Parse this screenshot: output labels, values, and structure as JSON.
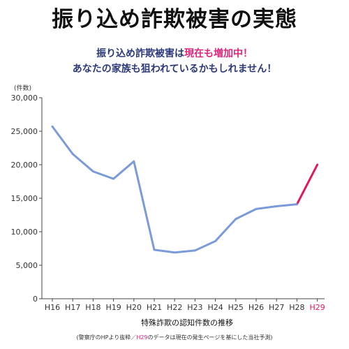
{
  "title": "振り込め詐欺被害の実態",
  "subtitle": {
    "line1_pre": "振り込め詐欺被害は",
    "line1_hl": "現在も増加中！",
    "line2": "あなたの家族も狙われているかもしれません！"
  },
  "footnote": {
    "pre": "(警察庁のHPより抜粋／",
    "pink": "H29",
    "post": "のデータは現在の発生ページを基にした当社予測)"
  },
  "colors": {
    "line": "#7b9ad9",
    "projection": "#e0185f",
    "highlight_text": "#e0247a",
    "subtitle_text": "#2c3a7a"
  },
  "chart_data": {
    "type": "line",
    "x": [
      "H16",
      "H17",
      "H18",
      "H19",
      "H20",
      "H21",
      "H22",
      "H23",
      "H24",
      "H25",
      "H26",
      "H27",
      "H28",
      "H29"
    ],
    "series": [
      {
        "values": [
          25700,
          21600,
          19000,
          17900,
          20500,
          7300,
          6900,
          7200,
          8600,
          11900,
          13400,
          13800,
          14100,
          20000
        ]
      }
    ],
    "projected_segment": [
      "H28",
      "H29"
    ],
    "projected_label": "H29",
    "xlabel": "特殊詐欺の認知件数の推移",
    "ylabel": "(件数)",
    "ylim": [
      0,
      30000
    ],
    "yticks": [
      0,
      5000,
      10000,
      15000,
      20000,
      25000,
      30000
    ],
    "ytick_labels": [
      "0",
      "5,000",
      "10,000",
      "15,000",
      "20,000",
      "25,000",
      "30,000"
    ],
    "grid": false
  }
}
